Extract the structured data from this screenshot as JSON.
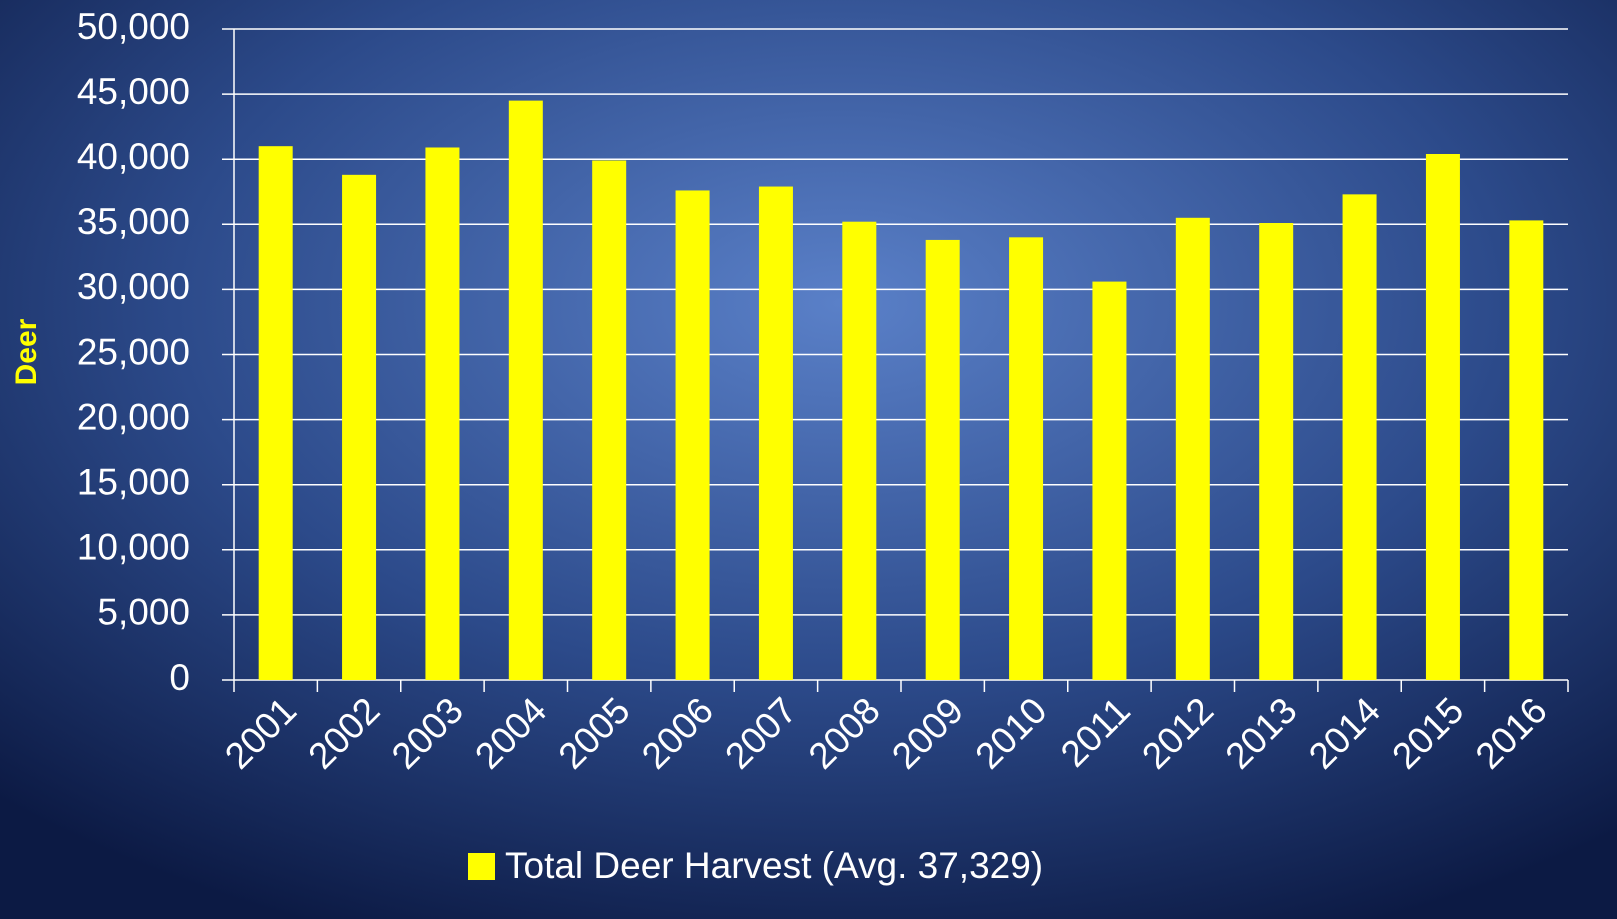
{
  "chart_data": {
    "type": "bar",
    "y_axis_label": "Deer",
    "categories": [
      "2001",
      "2002",
      "2003",
      "2004",
      "2005",
      "2006",
      "2007",
      "2008",
      "2009",
      "2010",
      "2011",
      "2012",
      "2013",
      "2014",
      "2015",
      "2016"
    ],
    "series": [
      {
        "name": "Total Deer Harvest (Avg. 37,329)",
        "color": "#ffff00",
        "values": [
          41000,
          38800,
          40900,
          44500,
          39900,
          37600,
          37900,
          35200,
          33800,
          34000,
          30600,
          35500,
          35100,
          37300,
          40400,
          35300
        ]
      }
    ],
    "ylim": [
      0,
      50000
    ],
    "yticks": [
      0,
      {
        "value": 5000,
        "label": "5,000"
      },
      {
        "value": 10000,
        "label": "10,000"
      },
      {
        "value": 15000,
        "label": "15,000"
      },
      {
        "value": 20000,
        "label": "20,000"
      },
      {
        "value": 25000,
        "label": "25,000"
      },
      {
        "value": 30000,
        "label": "30,000"
      },
      {
        "value": 35000,
        "label": "35,000"
      },
      {
        "value": 40000,
        "label": "40,000"
      },
      {
        "value": 45000,
        "label": "45,000"
      },
      {
        "value": 50000,
        "label": "50,000"
      }
    ],
    "grid": true,
    "legend": "bottom"
  }
}
